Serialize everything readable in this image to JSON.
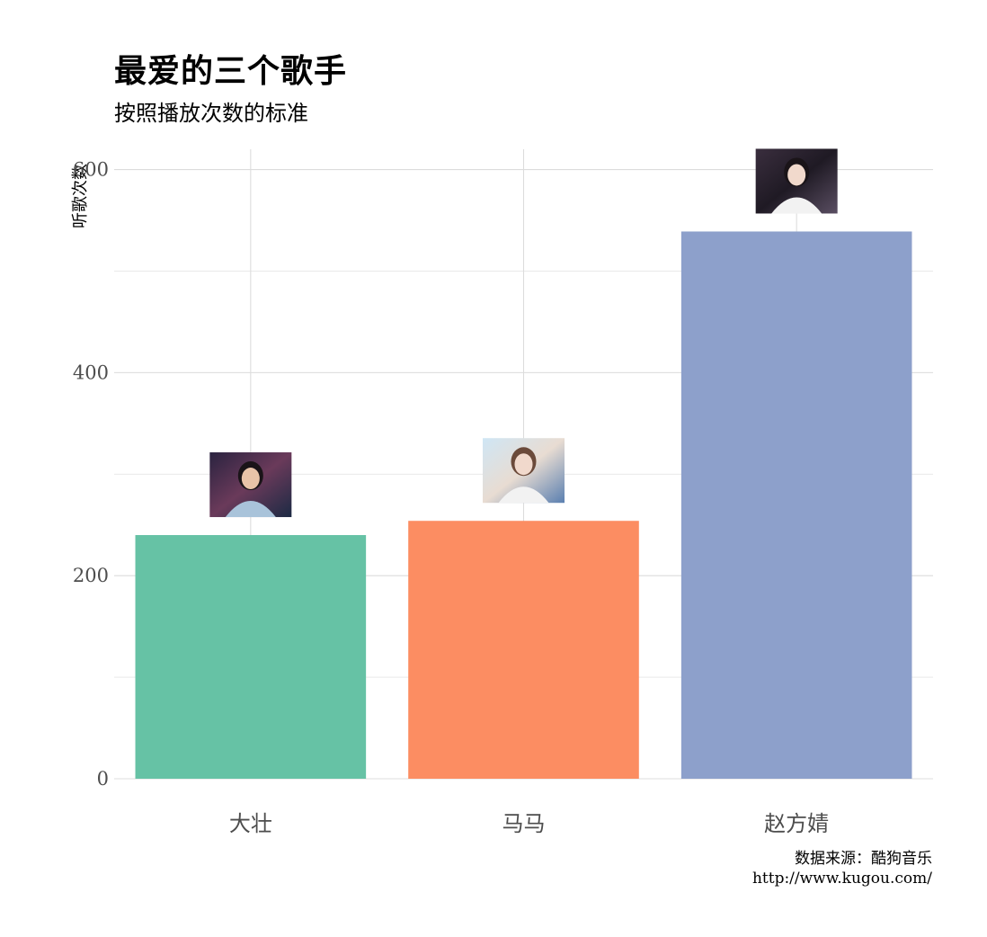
{
  "chart_data": {
    "type": "bar",
    "title": "最爱的三个歌手",
    "subtitle": "按照播放次数的标准",
    "xlabel": "",
    "ylabel": "听歌次数",
    "categories": [
      "大壮",
      "马马",
      "赵方婧"
    ],
    "values": [
      240,
      254,
      539
    ],
    "colors": [
      "#66c2a5",
      "#fc8d62",
      "#8da0cb"
    ],
    "ylim": [
      0,
      620
    ],
    "yticks": [
      0,
      200,
      400,
      600
    ],
    "ytick_labels": [
      "0",
      "200",
      "400",
      "600"
    ],
    "grid": true,
    "legend": "none",
    "annotations": [
      "singer-photo",
      "singer-photo",
      "singer-photo"
    ]
  },
  "caption": {
    "line1": "数据来源：酷狗音乐",
    "line2": "http://www.kugou.com/"
  }
}
